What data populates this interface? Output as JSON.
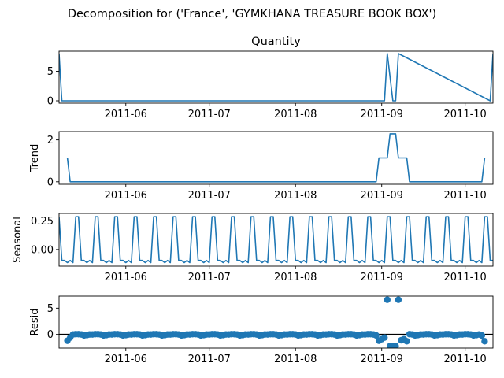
{
  "suptitle": "Decomposition for ('France', 'GYMKHANA TREASURE BOOK BOX')",
  "colors": {
    "series": "#1f77b4",
    "axis": "#000000",
    "zero_line": "#000000"
  },
  "chart_data": [
    {
      "type": "line",
      "title": "Quantity",
      "ylabel": "",
      "x_range": [
        "2011-05-08",
        "2011-10-11"
      ],
      "ylim": [
        -0.4,
        8.4
      ],
      "yticks": [
        0,
        5
      ],
      "xticks": [
        "2011-06-01",
        "2011-07-01",
        "2011-08-01",
        "2011-09-01",
        "2011-10-01"
      ],
      "xtick_labels": [
        "2011-06",
        "2011-07",
        "2011-08",
        "2011-09",
        "2011-10"
      ],
      "x": [
        "2011-05-08",
        "2011-05-09",
        "2011-08-31",
        "2011-09-02",
        "2011-09-03",
        "2011-09-05",
        "2011-09-06",
        "2011-09-07",
        "2011-10-10",
        "2011-10-11"
      ],
      "values": [
        8,
        0,
        0,
        0,
        8,
        0,
        0,
        8,
        0,
        8
      ]
    },
    {
      "type": "line",
      "title": "",
      "ylabel": "Trend",
      "x_range": [
        "2011-05-08",
        "2011-10-11"
      ],
      "ylim": [
        -0.12,
        2.4
      ],
      "yticks": [
        0,
        2
      ],
      "xticks": [
        "2011-06-01",
        "2011-07-01",
        "2011-08-01",
        "2011-09-01",
        "2011-10-01"
      ],
      "xtick_labels": [
        "2011-06",
        "2011-07",
        "2011-08",
        "2011-09",
        "2011-10"
      ],
      "x": [
        "2011-05-11",
        "2011-05-12",
        "2011-08-30",
        "2011-08-31",
        "2011-09-03",
        "2011-09-04",
        "2011-09-06",
        "2011-09-07",
        "2011-09-10",
        "2011-09-11",
        "2011-10-07",
        "2011-10-08"
      ],
      "values": [
        1.14,
        0,
        0,
        1.14,
        1.14,
        2.29,
        2.29,
        1.14,
        1.14,
        0,
        0,
        1.14
      ]
    },
    {
      "type": "line",
      "title": "",
      "ylabel": "Seasonal",
      "x_range": [
        "2011-05-08",
        "2011-10-11"
      ],
      "ylim": [
        -0.145,
        0.315
      ],
      "yticks": [
        -0.0,
        0.25
      ],
      "ytick_labels": [
        "0.00",
        "0.25"
      ],
      "xticks": [
        "2011-06-01",
        "2011-07-01",
        "2011-08-01",
        "2011-09-01",
        "2011-10-01"
      ],
      "xtick_labels": [
        "2011-06",
        "2011-07",
        "2011-08",
        "2011-09",
        "2011-10"
      ],
      "start": "2011-05-08",
      "period_pattern": [
        0.286,
        -0.095,
        -0.095,
        -0.114,
        -0.095,
        -0.114,
        0.286
      ]
    },
    {
      "type": "scatter",
      "title": "",
      "ylabel": "Resid",
      "x_range": [
        "2011-05-08",
        "2011-10-11"
      ],
      "ylim": [
        -2.6,
        7.3
      ],
      "yticks": [
        0,
        5
      ],
      "xticks": [
        "2011-06-01",
        "2011-07-01",
        "2011-08-01",
        "2011-09-01",
        "2011-10-01"
      ],
      "xtick_labels": [
        "2011-06",
        "2011-07",
        "2011-08",
        "2011-09",
        "2011-10"
      ],
      "zero_line": true,
      "start": "2011-05-11",
      "end": "2011-10-08",
      "default_values_by_weekday": [
        -0.12,
        0.0,
        0.0,
        0.06,
        0.06,
        0.0,
        -0.18
      ],
      "overrides": [
        {
          "x": "2011-05-11",
          "y": -1.2
        },
        {
          "x": "2011-05-12",
          "y": -0.6
        },
        {
          "x": "2011-08-31",
          "y": -1.2
        },
        {
          "x": "2011-09-01",
          "y": -0.9
        },
        {
          "x": "2011-09-02",
          "y": -0.6
        },
        {
          "x": "2011-09-03",
          "y": 6.6
        },
        {
          "x": "2011-09-04",
          "y": -2.2
        },
        {
          "x": "2011-09-05",
          "y": -2.2
        },
        {
          "x": "2011-09-06",
          "y": -2.2
        },
        {
          "x": "2011-09-07",
          "y": 6.6
        },
        {
          "x": "2011-09-08",
          "y": -1.1
        },
        {
          "x": "2011-09-09",
          "y": -0.9
        },
        {
          "x": "2011-09-10",
          "y": -1.3
        },
        {
          "x": "2011-10-07",
          "y": -0.2
        },
        {
          "x": "2011-10-08",
          "y": -1.3
        }
      ]
    }
  ]
}
